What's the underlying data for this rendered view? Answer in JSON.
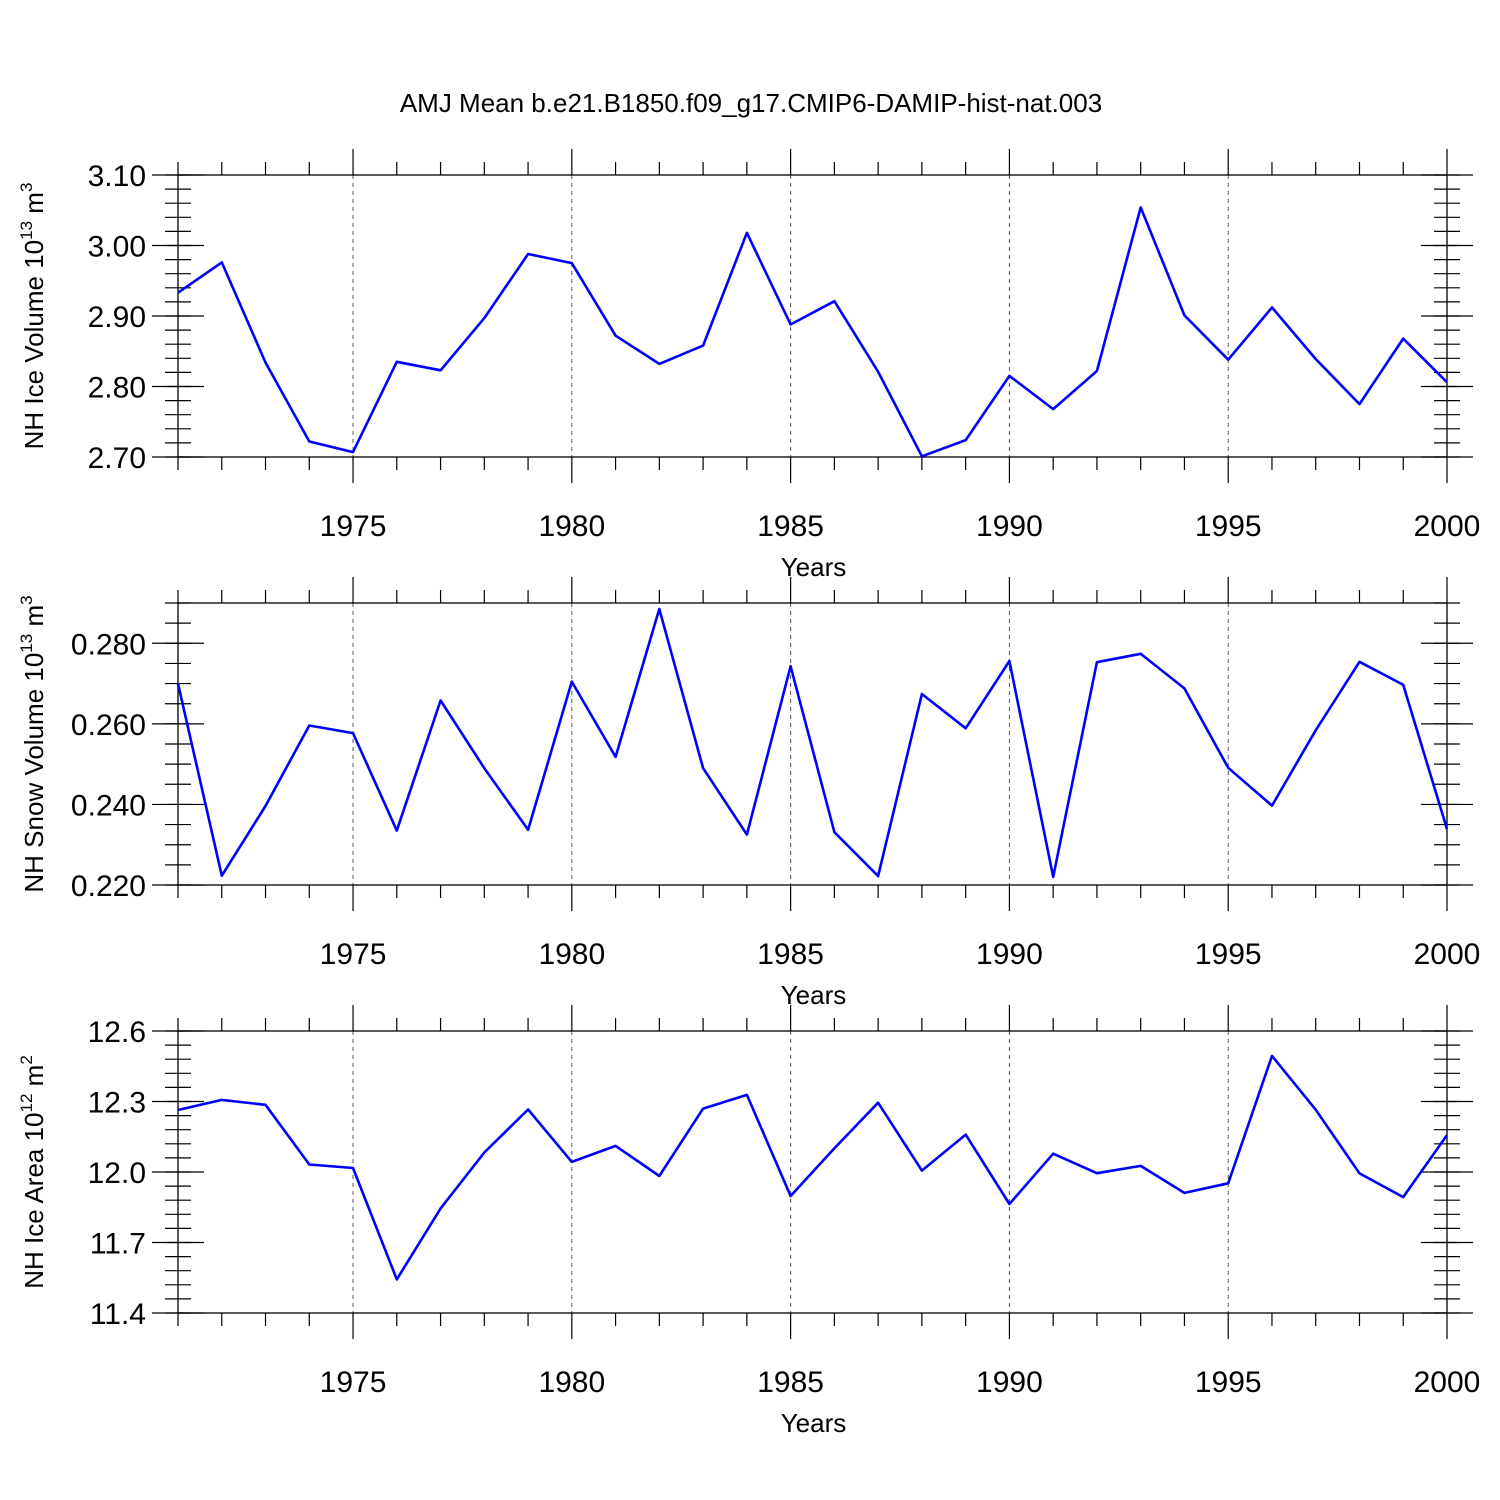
{
  "title": "AMJ Mean b.e21.B1850.f09_g17.CMIP6-DAMIP-hist-nat.003",
  "colors": {
    "series": "#0000ff",
    "axis": "#000000",
    "grid": "#555555"
  },
  "chart_data": [
    {
      "type": "line",
      "ylabel": "NH Ice Volume 10",
      "ylabel_exponent": "13",
      "ylabel_unit": "m",
      "ylabel_unit_exponent": "3",
      "xlabel": "Years",
      "xlim": [
        1971,
        2000
      ],
      "ylim": [
        2.7,
        3.1
      ],
      "xticks": [
        1975,
        1980,
        1985,
        1990,
        1995,
        2000
      ],
      "yticks": [
        2.7,
        2.8,
        2.9,
        3.0,
        3.1
      ],
      "ytick_labels": [
        "2.70",
        "2.80",
        "2.90",
        "3.00",
        "3.10"
      ],
      "y_minor_step": 0.02,
      "grid": "vertical dashed at major x ticks",
      "x": [
        1971,
        1972,
        1973,
        1974,
        1975,
        1976,
        1977,
        1978,
        1979,
        1980,
        1981,
        1982,
        1983,
        1984,
        1985,
        1986,
        1987,
        1988,
        1989,
        1990,
        1991,
        1992,
        1993,
        1994,
        1995,
        1996,
        1997,
        1998,
        1999,
        2000
      ],
      "values": [
        2.933,
        2.976,
        2.834,
        2.722,
        2.707,
        2.835,
        2.823,
        2.897,
        2.988,
        2.975,
        2.872,
        2.832,
        2.858,
        3.018,
        2.888,
        2.921,
        2.821,
        2.701,
        2.724,
        2.815,
        2.768,
        2.822,
        3.054,
        2.901,
        2.838,
        2.912,
        2.839,
        2.775,
        2.868,
        2.806
      ]
    },
    {
      "type": "line",
      "ylabel": "NH Snow Volume 10",
      "ylabel_exponent": "13",
      "ylabel_unit": "m",
      "ylabel_unit_exponent": "3",
      "xlabel": "Years",
      "xlim": [
        1971,
        2000
      ],
      "ylim": [
        0.22,
        0.29
      ],
      "xticks": [
        1975,
        1980,
        1985,
        1990,
        1995,
        2000
      ],
      "yticks": [
        0.22,
        0.24,
        0.26,
        0.28
      ],
      "ytick_labels": [
        "0.220",
        "0.240",
        "0.260",
        "0.280"
      ],
      "y_minor_step": 0.005,
      "grid": "vertical dashed at major x ticks",
      "x": [
        1971,
        1972,
        1973,
        1974,
        1975,
        1976,
        1977,
        1978,
        1979,
        1980,
        1981,
        1982,
        1983,
        1984,
        1985,
        1986,
        1987,
        1988,
        1989,
        1990,
        1991,
        1992,
        1993,
        1994,
        1995,
        1996,
        1997,
        1998,
        1999,
        2000
      ],
      "values": [
        0.27,
        0.2223,
        0.2396,
        0.2596,
        0.2577,
        0.2335,
        0.2658,
        0.249,
        0.2337,
        0.2705,
        0.2518,
        0.2885,
        0.249,
        0.2325,
        0.2743,
        0.2331,
        0.2222,
        0.2674,
        0.2589,
        0.2756,
        0.222,
        0.2753,
        0.2774,
        0.2688,
        0.2491,
        0.2397,
        0.2584,
        0.2754,
        0.2697,
        0.2339
      ]
    },
    {
      "type": "line",
      "ylabel": "NH Ice Area 10",
      "ylabel_exponent": "12",
      "ylabel_unit": "m",
      "ylabel_unit_exponent": "2",
      "xlabel": "Years",
      "xlim": [
        1971,
        2000
      ],
      "ylim": [
        11.4,
        12.6
      ],
      "xticks": [
        1975,
        1980,
        1985,
        1990,
        1995,
        2000
      ],
      "yticks": [
        11.4,
        11.7,
        12.0,
        12.3,
        12.6
      ],
      "ytick_labels": [
        "11.4",
        "11.7",
        "12.0",
        "12.3",
        "12.6"
      ],
      "y_minor_step": 0.06,
      "grid": "vertical dashed at major x ticks",
      "x": [
        1971,
        1972,
        1973,
        1974,
        1975,
        1976,
        1977,
        1978,
        1979,
        1980,
        1981,
        1982,
        1983,
        1984,
        1985,
        1986,
        1987,
        1988,
        1989,
        1990,
        1991,
        1992,
        1993,
        1994,
        1995,
        1996,
        1997,
        1998,
        1999,
        2000
      ],
      "values": [
        12.264,
        12.307,
        12.286,
        12.032,
        12.017,
        11.543,
        11.845,
        12.083,
        12.266,
        12.043,
        12.111,
        11.983,
        12.27,
        12.328,
        11.898,
        12.101,
        12.295,
        12.006,
        12.159,
        11.864,
        12.078,
        11.995,
        12.026,
        11.911,
        11.952,
        12.494,
        12.265,
        11.994,
        11.893,
        12.157
      ]
    }
  ]
}
